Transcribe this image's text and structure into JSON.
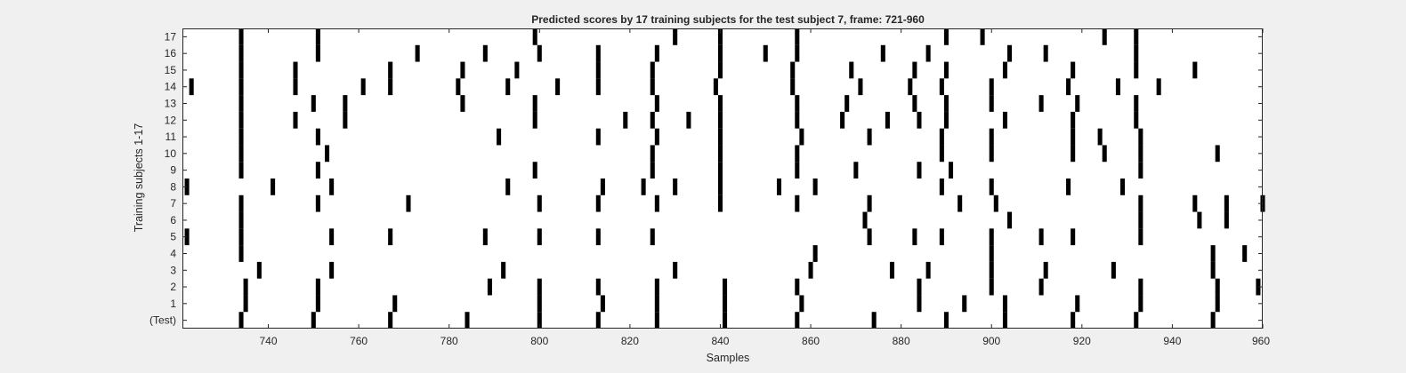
{
  "chart_data": {
    "type": "heatmap",
    "title": "Predicted scores by 17 training subjects for the test subject 7, frame: 721-960",
    "xlabel": "Samples",
    "ylabel": "Training subjects 1-17",
    "xlim": [
      721,
      960
    ],
    "x_ticks": [
      "740",
      "760",
      "780",
      "800",
      "820",
      "840",
      "860",
      "880",
      "900",
      "920",
      "940",
      "960"
    ],
    "row_labels": [
      "(Test)",
      "1",
      "2",
      "3",
      "4",
      "5",
      "6",
      "7",
      "8",
      "9",
      "10",
      "11",
      "12",
      "13",
      "14",
      "15",
      "16",
      "17"
    ],
    "grid": false,
    "colors": {
      "mark": "#000000",
      "background": "#ffffff",
      "axis": "#262626"
    },
    "rows": [
      {
        "label": "(Test)",
        "x": [
          734,
          750,
          767,
          784,
          800,
          813,
          826,
          841,
          857,
          874,
          890,
          903,
          918,
          932,
          949
        ]
      },
      {
        "label": "1",
        "x": [
          735,
          751,
          768,
          800,
          814,
          826,
          841,
          858,
          884,
          894,
          903,
          919,
          933,
          950
        ]
      },
      {
        "label": "2",
        "x": [
          735,
          751,
          789,
          800,
          813,
          826,
          841,
          857,
          884,
          900,
          911,
          933,
          950,
          959
        ]
      },
      {
        "label": "3",
        "x": [
          738,
          754,
          792,
          830,
          860,
          878,
          886,
          900,
          912,
          927,
          949
        ]
      },
      {
        "label": "4",
        "x": [
          734,
          861,
          900,
          949,
          956
        ]
      },
      {
        "label": "5",
        "x": [
          722,
          734,
          754,
          767,
          788,
          800,
          813,
          825,
          873,
          883,
          889,
          900,
          911,
          918,
          933
        ]
      },
      {
        "label": "6",
        "x": [
          734,
          872,
          904,
          933,
          946,
          952
        ]
      },
      {
        "label": "7",
        "x": [
          734,
          751,
          771,
          800,
          813,
          826,
          840,
          857,
          873,
          893,
          901,
          933,
          945,
          952,
          960
        ]
      },
      {
        "label": "8",
        "x": [
          722,
          741,
          754,
          793,
          814,
          823,
          830,
          840,
          853,
          861,
          889,
          900,
          917,
          929
        ]
      },
      {
        "label": "9",
        "x": [
          734,
          751,
          799,
          825,
          840,
          857,
          870,
          884,
          891,
          933
        ]
      },
      {
        "label": "10",
        "x": [
          734,
          753,
          825,
          840,
          857,
          889,
          900,
          918,
          925,
          933,
          950
        ]
      },
      {
        "label": "11",
        "x": [
          734,
          751,
          791,
          813,
          826,
          840,
          858,
          873,
          889,
          900,
          918,
          924,
          933
        ]
      },
      {
        "label": "12",
        "x": [
          734,
          746,
          757,
          799,
          819,
          825,
          833,
          840,
          857,
          867,
          877,
          884,
          890,
          903,
          918,
          932
        ]
      },
      {
        "label": "13",
        "x": [
          734,
          750,
          757,
          783,
          799,
          826,
          840,
          857,
          868,
          883,
          890,
          900,
          911,
          919,
          932
        ]
      },
      {
        "label": "14",
        "x": [
          723,
          734,
          746,
          761,
          767,
          782,
          793,
          804,
          813,
          825,
          839,
          856,
          871,
          882,
          889,
          900,
          917,
          928,
          937
        ]
      },
      {
        "label": "15",
        "x": [
          734,
          746,
          767,
          783,
          795,
          813,
          825,
          840,
          856,
          869,
          883,
          890,
          903,
          918,
          932,
          945
        ]
      },
      {
        "label": "16",
        "x": [
          734,
          751,
          773,
          788,
          800,
          813,
          826,
          840,
          850,
          857,
          876,
          886,
          904,
          912,
          932
        ]
      },
      {
        "label": "17",
        "x": [
          734,
          751,
          799,
          830,
          840,
          857,
          890,
          898,
          925,
          932
        ]
      }
    ]
  }
}
